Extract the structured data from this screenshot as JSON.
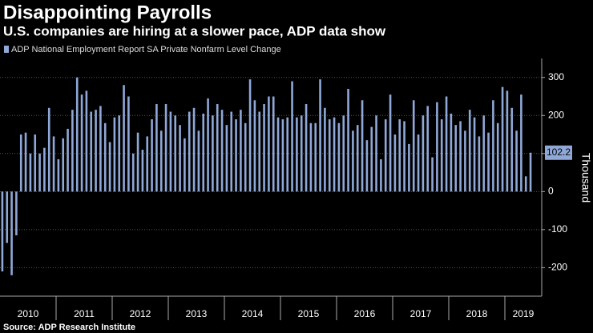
{
  "chart_data": {
    "type": "bar",
    "title": "Disappointing Payrolls",
    "subtitle": "U.S. companies are hiring at a slower pace, ADP data show",
    "series_name": "ADP National Employment Report SA Private Nonfarm Level Change",
    "y_label": "Thousand",
    "source": "Source: ADP Research Institute",
    "color": "#8fa8d8",
    "year_labels": [
      "2010",
      "2011",
      "2012",
      "2013",
      "2014",
      "2015",
      "2016",
      "2017",
      "2018",
      "2019"
    ],
    "values": [
      -210,
      -135,
      -220,
      -115,
      150,
      155,
      100,
      150,
      100,
      115,
      220,
      145,
      85,
      140,
      165,
      215,
      300,
      255,
      265,
      210,
      215,
      225,
      180,
      130,
      195,
      200,
      280,
      250,
      100,
      155,
      110,
      145,
      190,
      230,
      160,
      230,
      210,
      200,
      175,
      140,
      210,
      220,
      160,
      205,
      245,
      200,
      230,
      215,
      175,
      210,
      190,
      215,
      180,
      295,
      240,
      210,
      230,
      250,
      250,
      195,
      190,
      195,
      290,
      195,
      200,
      230,
      180,
      180,
      295,
      220,
      190,
      195,
      180,
      200,
      270,
      160,
      175,
      240,
      135,
      170,
      200,
      85,
      190,
      255,
      150,
      190,
      185,
      125,
      240,
      150,
      200,
      225,
      90,
      235,
      190,
      250,
      205,
      175,
      185,
      160,
      215,
      195,
      145,
      200,
      155,
      240,
      180,
      275,
      265,
      220,
      160,
      255,
      40,
      102.2
    ],
    "ylim": [
      -275,
      350
    ],
    "yticks": [
      300,
      200,
      100,
      0,
      -100,
      -200
    ],
    "grid": true
  }
}
